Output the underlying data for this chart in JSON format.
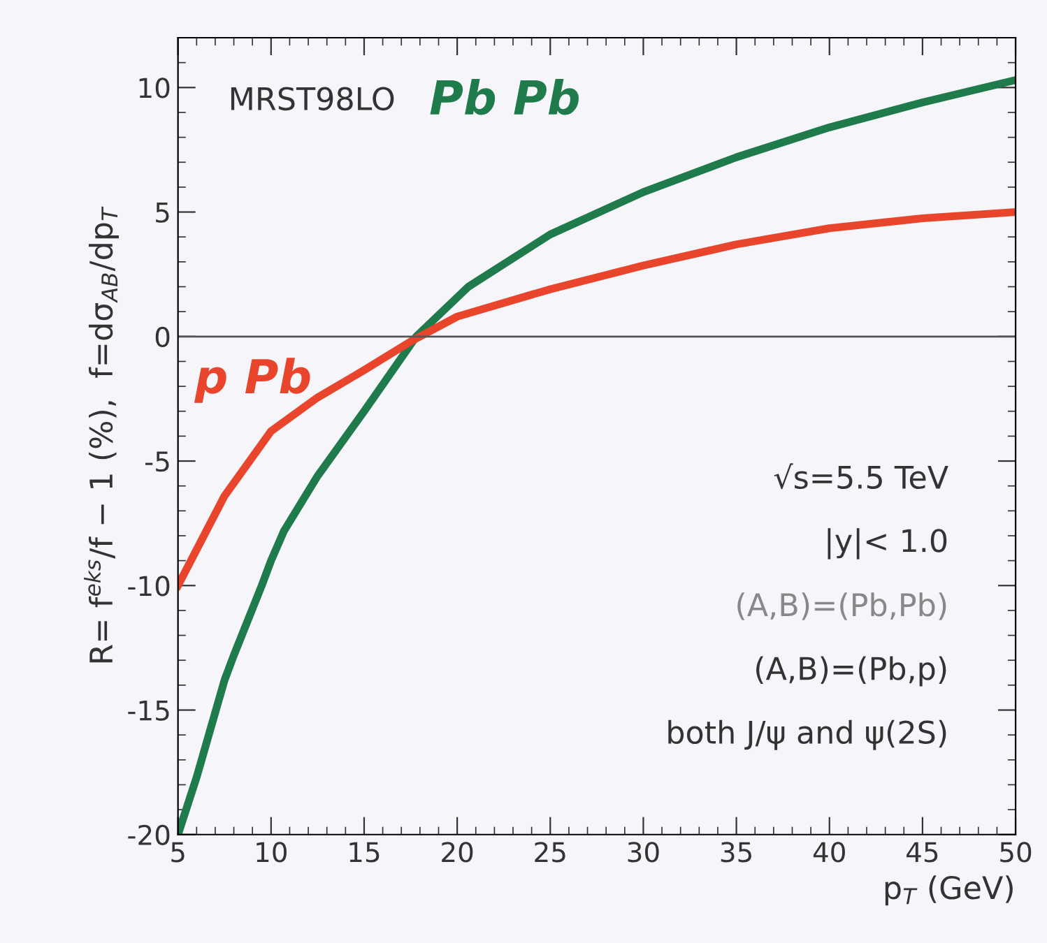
{
  "chart_data": {
    "type": "line",
    "xlabel": "p$_{T}$ (GeV)",
    "ylabel": "R= f$^{eks}$/f − 1 (%),  f=dσ$_{AB}$/dp$_{T}$",
    "xlim": [
      5,
      50
    ],
    "ylim": [
      -20,
      12
    ],
    "xticks": [
      5,
      10,
      15,
      20,
      25,
      30,
      35,
      40,
      45,
      50
    ],
    "yticks": [
      -20,
      -15,
      -10,
      -5,
      0,
      5,
      10
    ],
    "grid": false,
    "series": [
      {
        "name": "Pb Pb",
        "color": "#1f7a4c",
        "x": [
          5,
          6,
          7.5,
          8,
          9.5,
          10,
          10.7,
          12.5,
          15,
          17.8,
          20.6,
          25,
          30,
          35,
          40,
          45,
          50
        ],
        "values": [
          -20,
          -17.7,
          -13.8,
          -12.8,
          -10,
          -9,
          -7.8,
          -5.6,
          -3.0,
          0,
          2.0,
          4.1,
          5.8,
          7.2,
          8.4,
          9.4,
          10.3
        ]
      },
      {
        "name": "p Pb",
        "color": "#e8452c",
        "x": [
          5,
          7.5,
          10,
          12.5,
          15,
          17.5,
          20,
          25,
          30,
          35,
          40,
          45,
          50
        ],
        "values": [
          -10,
          -6.4,
          -3.8,
          -2.45,
          -1.35,
          -0.2,
          0.8,
          1.9,
          2.85,
          3.7,
          4.35,
          4.75,
          5.0
        ]
      }
    ],
    "ref_lines": [
      {
        "axis": "y",
        "value": 0,
        "color": "#555555"
      }
    ],
    "annotations": [
      "MRST98LO",
      "√s=5.5 TeV",
      "|y|< 1.0",
      "(A,B)=(Pb,Pb)",
      "(A,B)=(Pb,p)",
      "both J/ψ and ψ(2S)"
    ]
  }
}
